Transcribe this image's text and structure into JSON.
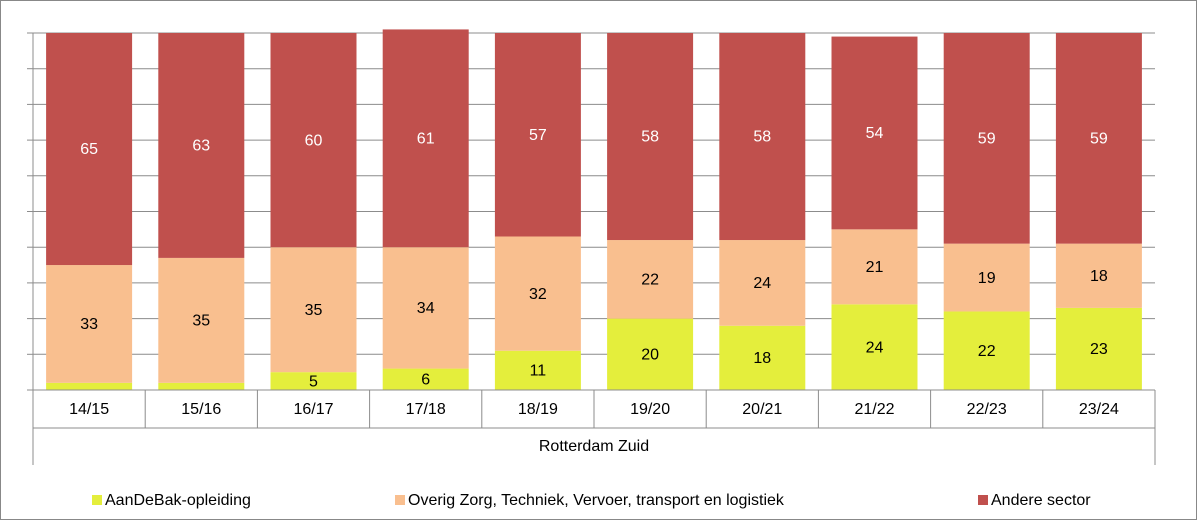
{
  "chart_data": {
    "type": "stacked_bar",
    "categories": [
      "14/15",
      "15/16",
      "16/17",
      "17/18",
      "18/19",
      "19/20",
      "20/21",
      "21/22",
      "22/23",
      "23/24"
    ],
    "group_label": "Rotterdam Zuid",
    "series": [
      {
        "name": "AanDeBak-opleiding",
        "color": "#e4ee3c",
        "label_color": "#000000",
        "values": [
          2,
          2,
          5,
          6,
          11,
          20,
          18,
          24,
          22,
          23
        ],
        "value_labels": [
          null,
          null,
          "5",
          "6",
          "11",
          "20",
          "18",
          "24",
          "22",
          "23"
        ]
      },
      {
        "name": "Overig Zorg, Techniek, Vervoer, transport en logistiek",
        "color": "#f9bf8f",
        "label_color": "#000000",
        "values": [
          33,
          35,
          35,
          34,
          32,
          22,
          24,
          21,
          19,
          18
        ]
      },
      {
        "name": "Andere sector",
        "color": "#c0504d",
        "label_color": "#ffffff",
        "values": [
          65,
          63,
          60,
          61,
          57,
          58,
          58,
          54,
          59,
          59
        ]
      }
    ],
    "ylim": [
      0,
      100
    ],
    "yticks": [
      0,
      10,
      20,
      30,
      40,
      50,
      60,
      70,
      80,
      90,
      100
    ],
    "grid": true,
    "legend": "bottom"
  }
}
